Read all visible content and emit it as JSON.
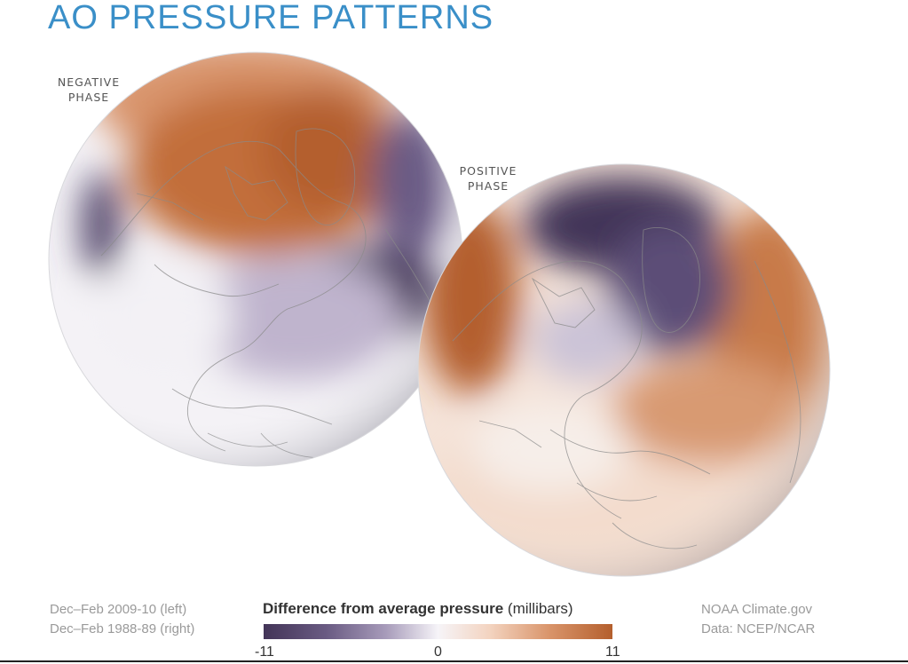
{
  "title": "AO PRESSURE PATTERNS",
  "negative_phase": {
    "line1": "NEGATIVE",
    "line2": "PHASE"
  },
  "positive_phase": {
    "line1": "POSITIVE",
    "line2": "PHASE"
  },
  "periods": {
    "left": "Dec–Feb 2009-10 (left)",
    "right": "Dec–Feb 1988-89 (right)"
  },
  "legend": {
    "title_bold": "Difference from average pressure",
    "title_unit": " (millibars)",
    "min_label": "-11",
    "mid_label": "0",
    "max_label": "11",
    "low_color": "#433558",
    "mid_color": "#f6f4f8",
    "high_color": "#b45f2d"
  },
  "credits": {
    "line1": "NOAA Climate.gov",
    "line2": "Data: NCEP/NCAR"
  },
  "colors": {
    "title": "#3a8fc8",
    "purple": "#433558",
    "orange": "#b45f2d"
  }
}
